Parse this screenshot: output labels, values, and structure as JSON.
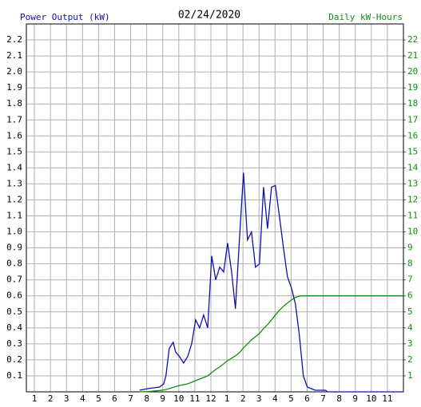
{
  "chart_data": {
    "type": "line",
    "title": "02/24/2020",
    "y_label": "Power Output (kW)",
    "y2_label": "Daily kW-Hours",
    "x": [
      7.56,
      8.06,
      8.8,
      9.06,
      9.2,
      9.4,
      9.65,
      9.8,
      10.05,
      10.3,
      10.55,
      10.8,
      11.05,
      11.3,
      11.55,
      11.8,
      12.05,
      12.3,
      12.55,
      12.8,
      13.04,
      13.29,
      13.53,
      13.78,
      14.03,
      14.28,
      14.53,
      14.78,
      15.03,
      15.28,
      15.53,
      15.78,
      16.02,
      16.27,
      16.52,
      16.77,
      17.02,
      17.27,
      17.52,
      17.76,
      18.01,
      18.5,
      19.16,
      19.25,
      24
    ],
    "series": [
      {
        "name": "Power Output (kW)",
        "color": "#1010b0",
        "values": [
          0.01,
          0.02,
          0.03,
          0.05,
          0.1,
          0.27,
          0.31,
          0.25,
          0.22,
          0.18,
          0.22,
          0.3,
          0.45,
          0.4,
          0.48,
          0.4,
          0.85,
          0.7,
          0.78,
          0.75,
          0.93,
          0.75,
          0.52,
          0.95,
          1.37,
          0.95,
          1.0,
          0.78,
          0.8,
          1.28,
          1.02,
          1.28,
          1.29,
          1.1,
          0.9,
          0.72,
          0.65,
          0.55,
          0.35,
          0.1,
          0.03,
          0.01,
          0.01,
          0,
          0
        ]
      },
      {
        "name": "Daily kW-Hours",
        "color": "#109010",
        "axis": "y2",
        "values": [
          0,
          0.02,
          0.08,
          0.12,
          0.15,
          0.2,
          0.28,
          0.33,
          0.4,
          0.45,
          0.5,
          0.6,
          0.7,
          0.8,
          0.9,
          1.0,
          1.2,
          1.4,
          1.55,
          1.75,
          1.95,
          2.1,
          2.25,
          2.45,
          2.75,
          3.0,
          3.25,
          3.45,
          3.65,
          3.95,
          4.2,
          4.5,
          4.8,
          5.1,
          5.35,
          5.55,
          5.75,
          5.9,
          5.98,
          6.0,
          6.0,
          6.0,
          6.0,
          6.0,
          6.0
        ]
      }
    ],
    "xlim": [
      0.5,
      24
    ],
    "xticks": [
      {
        "value": 1,
        "label": "1"
      },
      {
        "value": 2,
        "label": "2"
      },
      {
        "value": 3,
        "label": "3"
      },
      {
        "value": 4,
        "label": "4"
      },
      {
        "value": 5,
        "label": "5"
      },
      {
        "value": 6,
        "label": "6"
      },
      {
        "value": 7,
        "label": "7"
      },
      {
        "value": 8,
        "label": "8"
      },
      {
        "value": 9,
        "label": "9"
      },
      {
        "value": 10,
        "label": "10"
      },
      {
        "value": 11,
        "label": "11"
      },
      {
        "value": 12,
        "label": "12"
      },
      {
        "value": 13,
        "label": "1"
      },
      {
        "value": 14,
        "label": "2"
      },
      {
        "value": 15,
        "label": "3"
      },
      {
        "value": 16,
        "label": "4"
      },
      {
        "value": 17,
        "label": "5"
      },
      {
        "value": 18,
        "label": "6"
      },
      {
        "value": 19,
        "label": "7"
      },
      {
        "value": 20,
        "label": "8"
      },
      {
        "value": 21,
        "label": "9"
      },
      {
        "value": 22,
        "label": "10"
      },
      {
        "value": 23,
        "label": "11"
      }
    ],
    "ylim": [
      0,
      2.3
    ],
    "yticks": [
      0.1,
      0.2,
      0.3,
      0.4,
      0.5,
      0.6,
      0.7,
      0.8,
      0.9,
      {
        "value": 1,
        "label": "1.0"
      },
      1.1,
      1.2,
      1.3,
      1.4,
      1.5,
      1.6,
      1.7,
      1.8,
      1.9,
      {
        "value": 2,
        "label": "2.0"
      },
      2.1,
      2.2
    ],
    "y2lim": [
      0,
      23
    ],
    "y2ticks": [
      1,
      2,
      3,
      4,
      5,
      6,
      7,
      8,
      9,
      10,
      11,
      12,
      13,
      14,
      15,
      16,
      17,
      18,
      19,
      20,
      21,
      22
    ],
    "grid": true
  }
}
